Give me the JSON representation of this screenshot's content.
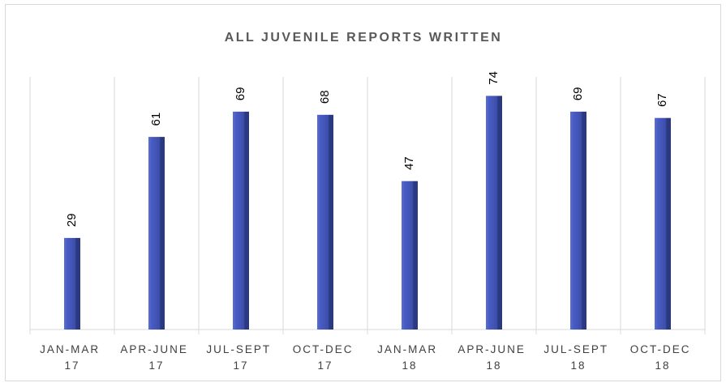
{
  "chart_data": {
    "type": "bar",
    "title": "ALL JUVENILE REPORTS WRITTEN",
    "categories": [
      "JAN-MAR 17",
      "APR-JUNE 17",
      "JUL-SEPT 17",
      "OCT-DEC 17",
      "JAN-MAR 18",
      "APR-JUNE 18",
      "JUL-SEPT 18",
      "OCT-DEC 18"
    ],
    "values": [
      29,
      61,
      69,
      68,
      47,
      74,
      69,
      67
    ],
    "color": "#3f51b5",
    "ylim": [
      0,
      80
    ]
  }
}
